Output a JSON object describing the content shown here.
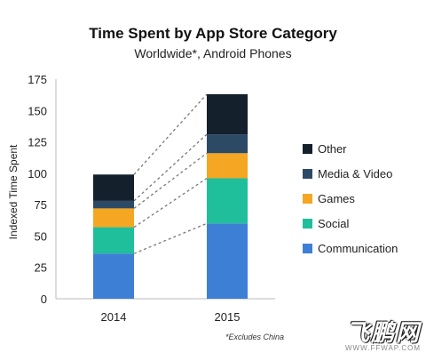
{
  "chart_data": {
    "type": "bar",
    "stacked": true,
    "title": "Time Spent by App Store Category",
    "subtitle": "Worldwide*, Android Phones",
    "ylabel": "Indexed Time Spent",
    "xlabel": "",
    "categories": [
      "2014",
      "2015"
    ],
    "ylim": [
      0,
      175
    ],
    "yticks": [
      0,
      25,
      50,
      75,
      100,
      125,
      150,
      175
    ],
    "series": [
      {
        "name": "Communication",
        "color": "#3e7fd6",
        "values": [
          36,
          60
        ]
      },
      {
        "name": "Social",
        "color": "#1fbf9c",
        "values": [
          21,
          36
        ]
      },
      {
        "name": "Games",
        "color": "#f5a623",
        "values": [
          15,
          20
        ]
      },
      {
        "name": "Media & Video",
        "color": "#2c4a66",
        "values": [
          6,
          15
        ]
      },
      {
        "name": "Other",
        "color": "#14202c",
        "values": [
          21,
          32
        ]
      }
    ],
    "legend_position": "right",
    "connector_lines": "dashed",
    "footnote": "*Excludes China"
  },
  "watermark": {
    "logo": "飞鹏网",
    "url": "WWW.FFWAP.COM"
  }
}
